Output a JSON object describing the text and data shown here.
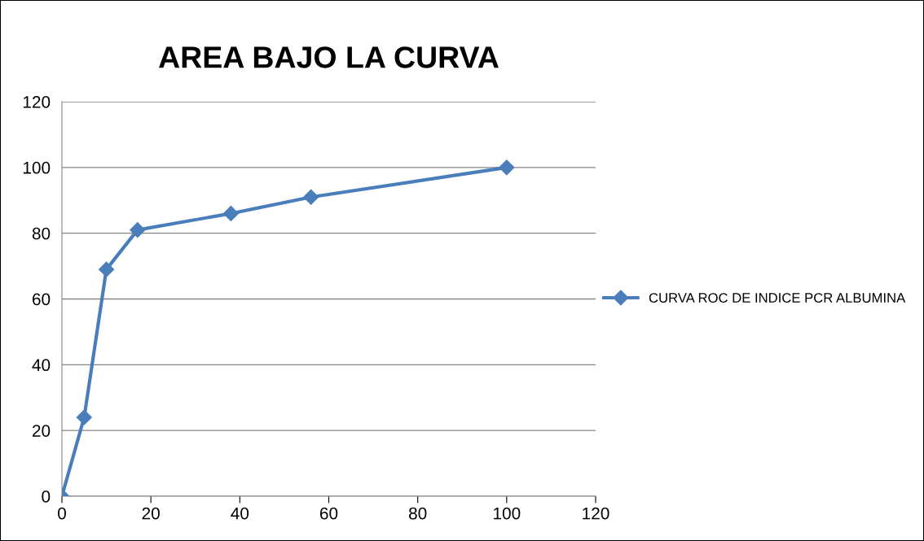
{
  "chart_data": {
    "type": "line",
    "title": "AREA BAJO LA CURVA",
    "x": [
      0,
      5,
      10,
      17,
      38,
      56,
      100
    ],
    "series": [
      {
        "name": "CURVA ROC DE INDICE PCR ALBUMINA",
        "color": "#4a7ebb",
        "values": [
          0,
          24,
          69,
          81,
          86,
          91,
          100
        ]
      }
    ],
    "xlim": [
      0,
      120
    ],
    "xticks": [
      0,
      20,
      40,
      60,
      80,
      100,
      120
    ],
    "ylim": [
      0,
      120
    ],
    "yticks": [
      0,
      20,
      40,
      60,
      80,
      100,
      120
    ],
    "grid": "y",
    "legend": "right",
    "marker": "diamond",
    "line_style": "solid"
  }
}
